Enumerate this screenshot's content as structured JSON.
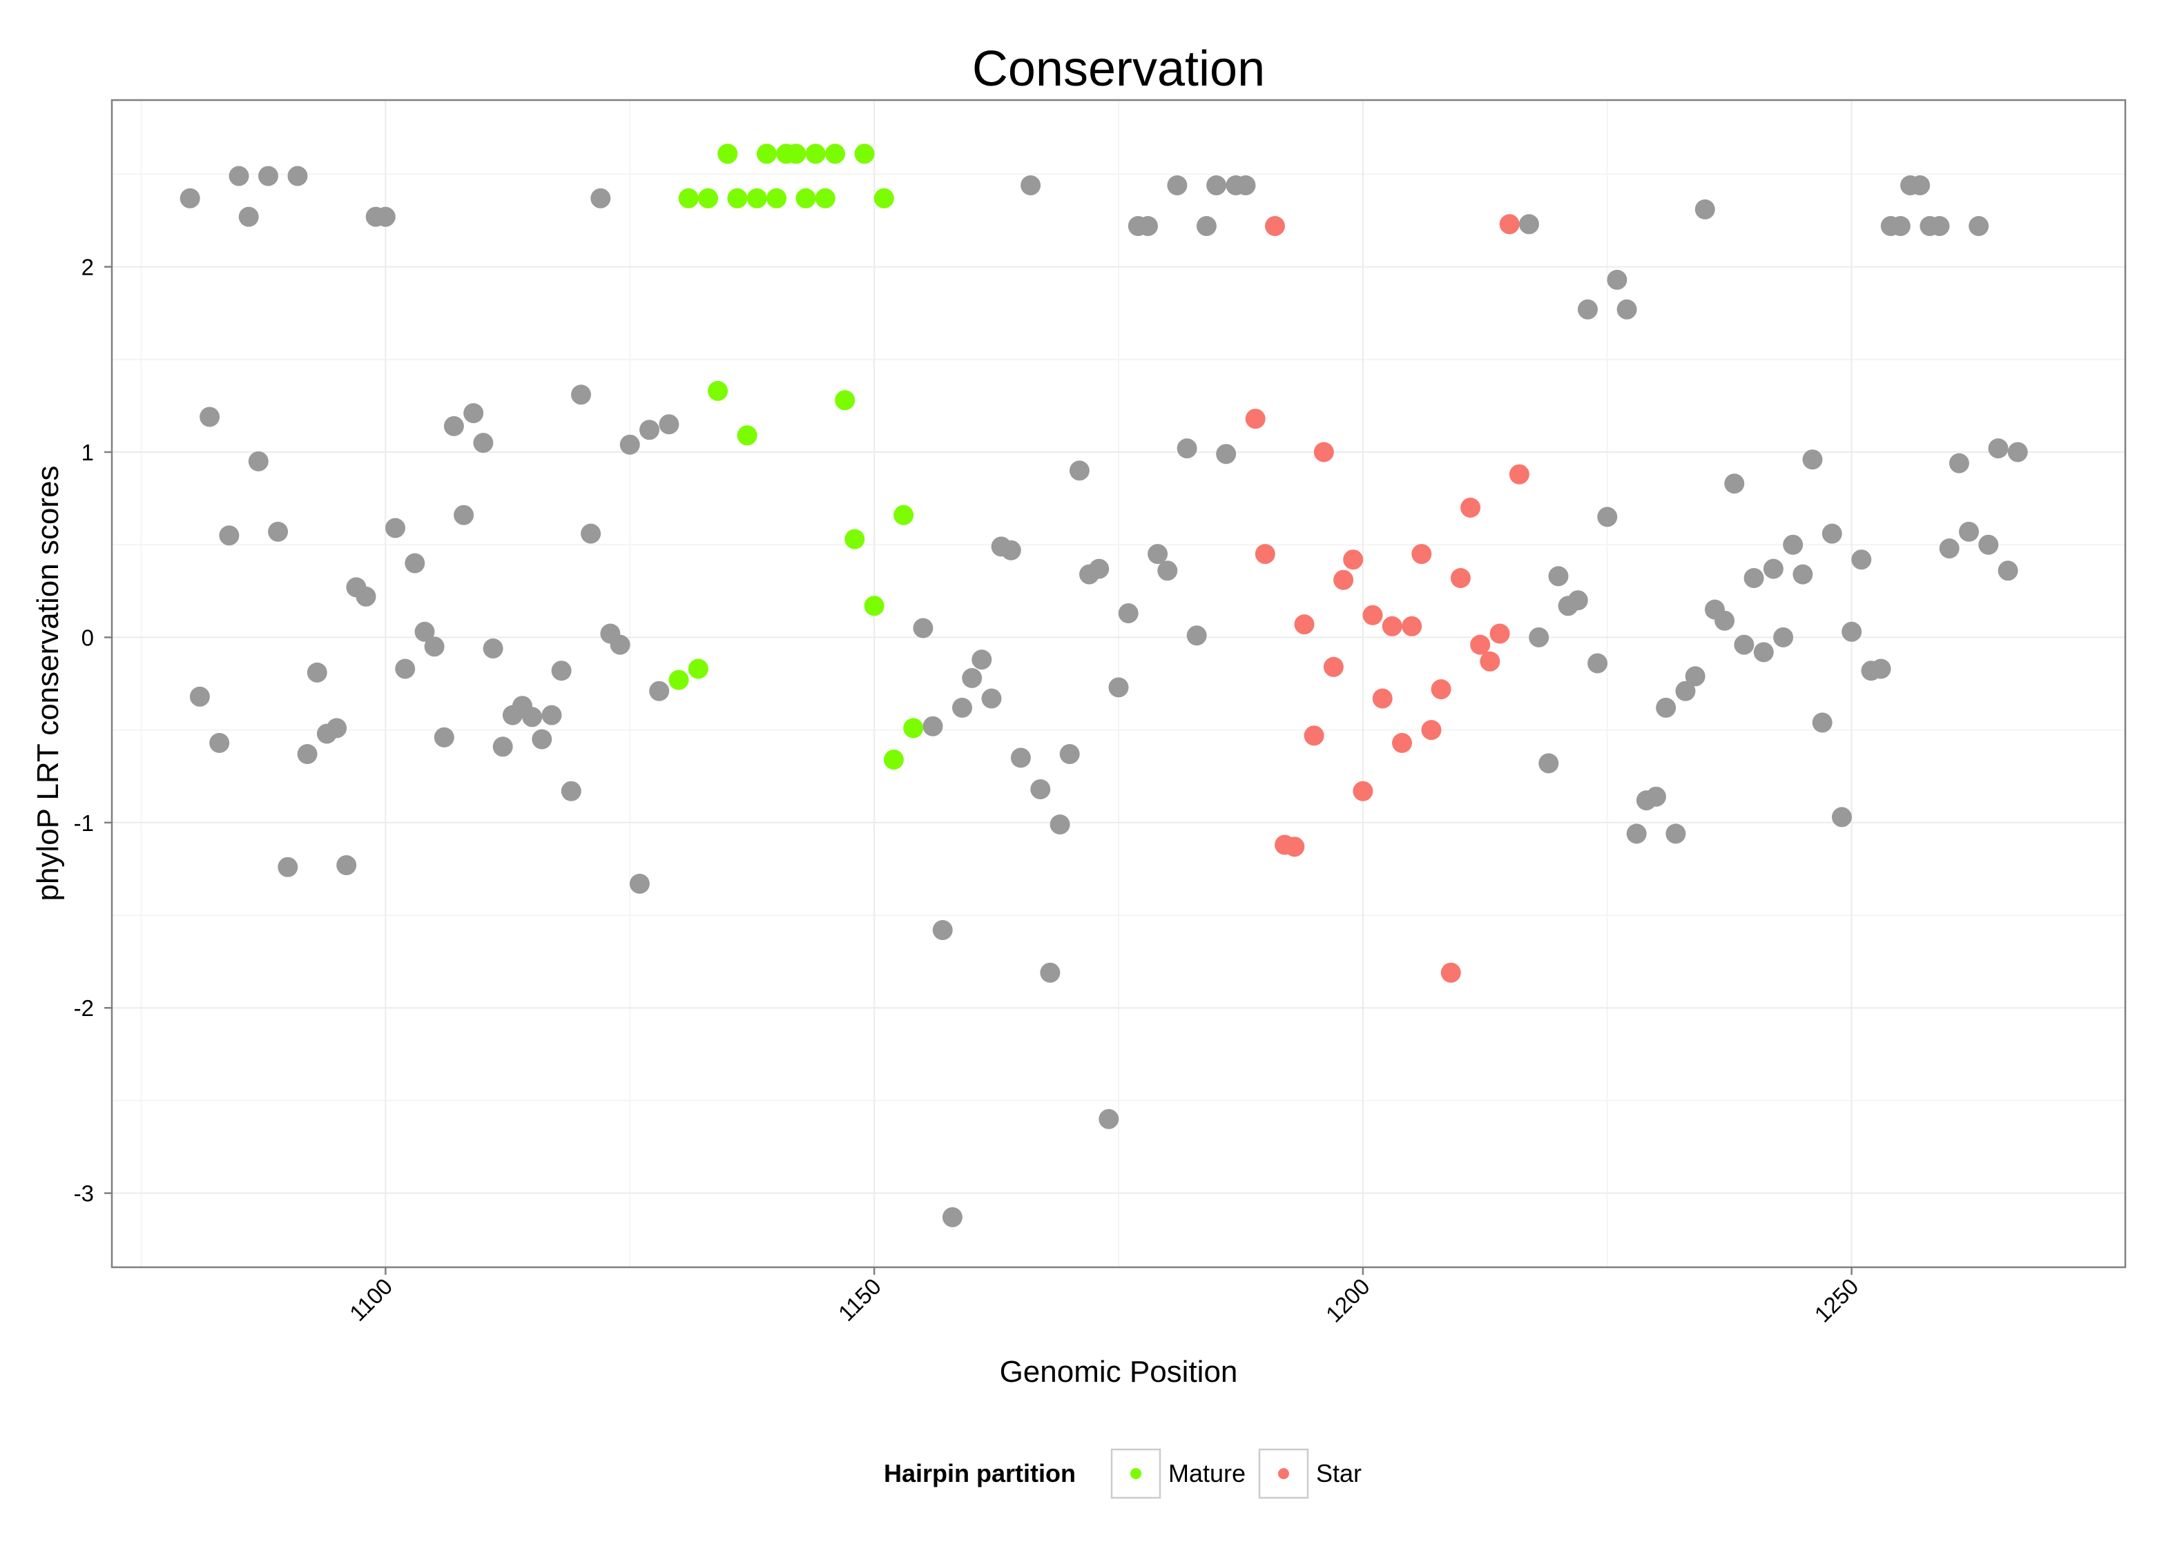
{
  "chart_data": {
    "type": "scatter",
    "title": "Conservation",
    "xlabel": "Genomic Position",
    "ylabel": "phyloP LRT conservation scores",
    "xlim": [
      1072,
      1278
    ],
    "ylim": [
      -3.4,
      2.9
    ],
    "xticks": [
      1100,
      1150,
      1200,
      1250
    ],
    "yticks": [
      -3,
      -2,
      -1,
      0,
      1,
      2
    ],
    "xtick_labels": [
      "1100",
      "1150",
      "1200",
      "1250"
    ],
    "ytick_labels": [
      "-3",
      "-2",
      "-1",
      "0",
      "1",
      "2"
    ],
    "grid": true,
    "legend": {
      "title": "Hairpin partition",
      "position": "bottom",
      "entries": [
        {
          "label": "Mature",
          "color": "#7CFC00"
        },
        {
          "label": "Star",
          "color": "#F8766D"
        }
      ]
    },
    "colors": {
      "other": "#999999",
      "mature": "#7CFC00",
      "star": "#F8766D"
    },
    "series": [
      {
        "group": "other",
        "points": [
          [
            1080,
            2.37
          ],
          [
            1081,
            -0.32
          ],
          [
            1082,
            1.19
          ],
          [
            1083,
            -0.57
          ],
          [
            1084,
            0.55
          ],
          [
            1085,
            2.49
          ],
          [
            1086,
            2.27
          ],
          [
            1087,
            0.95
          ],
          [
            1088,
            2.49
          ],
          [
            1089,
            0.57
          ],
          [
            1090,
            -1.24
          ],
          [
            1091,
            2.49
          ],
          [
            1092,
            -0.63
          ],
          [
            1093,
            -0.19
          ],
          [
            1094,
            -0.52
          ],
          [
            1095,
            -0.49
          ],
          [
            1096,
            -1.23
          ],
          [
            1097,
            0.27
          ],
          [
            1098,
            0.22
          ],
          [
            1099,
            2.27
          ],
          [
            1100,
            2.27
          ],
          [
            1101,
            0.59
          ],
          [
            1102,
            -0.17
          ],
          [
            1103,
            0.4
          ],
          [
            1104,
            0.03
          ],
          [
            1105,
            -0.05
          ],
          [
            1106,
            -0.54
          ],
          [
            1107,
            1.14
          ],
          [
            1108,
            0.66
          ],
          [
            1109,
            1.21
          ],
          [
            1110,
            1.05
          ],
          [
            1111,
            -0.06
          ],
          [
            1112,
            -0.59
          ],
          [
            1113,
            -0.42
          ],
          [
            1114,
            -0.37
          ],
          [
            1115,
            -0.43
          ],
          [
            1116,
            -0.55
          ],
          [
            1117,
            -0.42
          ],
          [
            1118,
            -0.18
          ],
          [
            1119,
            -0.83
          ],
          [
            1120,
            1.31
          ],
          [
            1121,
            0.56
          ],
          [
            1122,
            2.37
          ],
          [
            1123,
            0.02
          ],
          [
            1124,
            -0.04
          ],
          [
            1125,
            1.04
          ],
          [
            1126,
            -1.33
          ],
          [
            1127,
            1.12
          ],
          [
            1128,
            -0.29
          ],
          [
            1129,
            1.15
          ],
          [
            1155,
            0.05
          ],
          [
            1156,
            -0.48
          ],
          [
            1157,
            -1.58
          ],
          [
            1158,
            -3.13
          ],
          [
            1159,
            -0.38
          ],
          [
            1160,
            -0.22
          ],
          [
            1161,
            -0.12
          ],
          [
            1162,
            -0.33
          ],
          [
            1163,
            0.49
          ],
          [
            1164,
            0.47
          ],
          [
            1165,
            -0.65
          ],
          [
            1166,
            2.44
          ],
          [
            1167,
            -0.82
          ],
          [
            1168,
            -1.81
          ],
          [
            1169,
            -1.01
          ],
          [
            1170,
            -0.63
          ],
          [
            1171,
            0.9
          ],
          [
            1172,
            0.34
          ],
          [
            1173,
            0.37
          ],
          [
            1174,
            -2.6
          ],
          [
            1175,
            -0.27
          ],
          [
            1176,
            0.13
          ],
          [
            1177,
            2.22
          ],
          [
            1178,
            2.22
          ],
          [
            1179,
            0.45
          ],
          [
            1180,
            0.36
          ],
          [
            1181,
            2.44
          ],
          [
            1182,
            1.02
          ],
          [
            1183,
            0.01
          ],
          [
            1184,
            2.22
          ],
          [
            1185,
            2.44
          ],
          [
            1186,
            0.99
          ],
          [
            1187,
            2.44
          ],
          [
            1188,
            2.44
          ],
          [
            1217,
            2.23
          ],
          [
            1218,
            0.0
          ],
          [
            1219,
            -0.68
          ],
          [
            1220,
            0.33
          ],
          [
            1221,
            0.17
          ],
          [
            1222,
            0.2
          ],
          [
            1223,
            1.77
          ],
          [
            1224,
            -0.14
          ],
          [
            1225,
            0.65
          ],
          [
            1226,
            1.93
          ],
          [
            1227,
            1.77
          ],
          [
            1228,
            -1.06
          ],
          [
            1229,
            -0.88
          ],
          [
            1230,
            -0.86
          ],
          [
            1231,
            -0.38
          ],
          [
            1232,
            -1.06
          ],
          [
            1233,
            -0.29
          ],
          [
            1234,
            -0.21
          ],
          [
            1235,
            2.31
          ],
          [
            1236,
            0.15
          ],
          [
            1237,
            0.09
          ],
          [
            1238,
            0.83
          ],
          [
            1239,
            -0.04
          ],
          [
            1240,
            0.32
          ],
          [
            1241,
            -0.08
          ],
          [
            1242,
            0.37
          ],
          [
            1243,
            0.0
          ],
          [
            1244,
            0.5
          ],
          [
            1245,
            0.34
          ],
          [
            1246,
            0.96
          ],
          [
            1247,
            -0.46
          ],
          [
            1248,
            0.56
          ],
          [
            1249,
            -0.97
          ],
          [
            1250,
            0.03
          ],
          [
            1251,
            0.42
          ],
          [
            1252,
            -0.18
          ],
          [
            1253,
            -0.17
          ],
          [
            1254,
            2.22
          ],
          [
            1255,
            2.22
          ],
          [
            1256,
            2.44
          ],
          [
            1257,
            2.44
          ],
          [
            1258,
            2.22
          ],
          [
            1259,
            2.22
          ],
          [
            1260,
            0.48
          ],
          [
            1261,
            0.94
          ],
          [
            1262,
            0.57
          ],
          [
            1263,
            2.22
          ],
          [
            1264,
            0.5
          ],
          [
            1265,
            1.02
          ],
          [
            1266,
            0.36
          ],
          [
            1267,
            1.0
          ]
        ]
      },
      {
        "group": "mature",
        "name": "Mature",
        "points": [
          [
            1130,
            -0.23
          ],
          [
            1131,
            2.37
          ],
          [
            1132,
            -0.17
          ],
          [
            1133,
            2.37
          ],
          [
            1134,
            1.33
          ],
          [
            1135,
            2.61
          ],
          [
            1136,
            2.37
          ],
          [
            1137,
            1.09
          ],
          [
            1138,
            2.37
          ],
          [
            1139,
            2.61
          ],
          [
            1140,
            2.37
          ],
          [
            1141,
            2.61
          ],
          [
            1142,
            2.61
          ],
          [
            1143,
            2.37
          ],
          [
            1144,
            2.61
          ],
          [
            1145,
            2.37
          ],
          [
            1146,
            2.61
          ],
          [
            1147,
            1.28
          ],
          [
            1148,
            0.53
          ],
          [
            1149,
            2.61
          ],
          [
            1150,
            0.17
          ],
          [
            1151,
            2.37
          ],
          [
            1152,
            -0.66
          ],
          [
            1153,
            0.66
          ],
          [
            1154,
            -0.49
          ]
        ]
      },
      {
        "group": "star",
        "name": "Star",
        "points": [
          [
            1189,
            1.18
          ],
          [
            1190,
            0.45
          ],
          [
            1191,
            2.22
          ],
          [
            1192,
            -1.12
          ],
          [
            1193,
            -1.13
          ],
          [
            1194,
            0.07
          ],
          [
            1195,
            -0.53
          ],
          [
            1196,
            1.0
          ],
          [
            1197,
            -0.16
          ],
          [
            1198,
            0.31
          ],
          [
            1199,
            0.42
          ],
          [
            1200,
            -0.83
          ],
          [
            1201,
            0.12
          ],
          [
            1202,
            -0.33
          ],
          [
            1203,
            0.06
          ],
          [
            1204,
            -0.57
          ],
          [
            1205,
            0.06
          ],
          [
            1206,
            0.45
          ],
          [
            1207,
            -0.5
          ],
          [
            1208,
            -0.28
          ],
          [
            1209,
            -1.81
          ],
          [
            1210,
            0.32
          ],
          [
            1211,
            0.7
          ],
          [
            1212,
            -0.04
          ],
          [
            1213,
            -0.13
          ],
          [
            1214,
            0.02
          ],
          [
            1215,
            2.23
          ],
          [
            1216,
            0.88
          ]
        ]
      }
    ]
  }
}
